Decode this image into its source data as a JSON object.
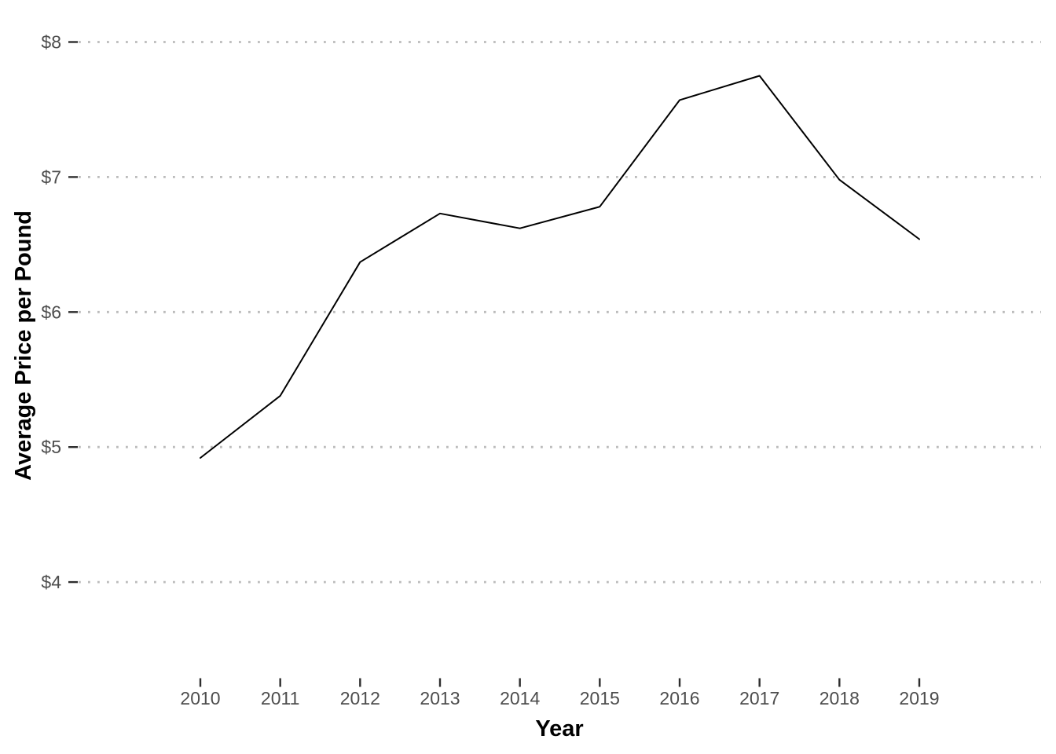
{
  "chart_data": {
    "type": "line",
    "title": "",
    "xlabel": "Year",
    "ylabel": "Average Price per Pound",
    "x": [
      2010,
      2011,
      2012,
      2013,
      2014,
      2015,
      2016,
      2017,
      2018,
      2019
    ],
    "series": [
      {
        "name": "average-price-per-pound",
        "values": [
          4.92,
          5.38,
          6.37,
          6.73,
          6.62,
          6.78,
          7.57,
          7.75,
          6.98,
          6.54
        ]
      }
    ],
    "x_tick_labels": [
      "2010",
      "2011",
      "2012",
      "2013",
      "2014",
      "2015",
      "2016",
      "2017",
      "2018",
      "2019"
    ],
    "y_tick_values": [
      8,
      7,
      6,
      5,
      4
    ],
    "y_tick_labels": [
      "$8",
      "$7",
      "$6",
      "$5",
      "$4"
    ],
    "ylim": [
      3.3,
      8.2
    ],
    "xlim": [
      2008.5,
      2020.5
    ],
    "grid": "horizontal dotted major gridlines only",
    "legend_position": "none",
    "point_markers": "none",
    "colors": {
      "line": "#000000",
      "gridline": "#BBBBBB",
      "tick_mark": "#2E2E2E",
      "tick_label": "#4D4D4D",
      "axis_title": "#000000",
      "background": "#FFFFFF"
    }
  }
}
